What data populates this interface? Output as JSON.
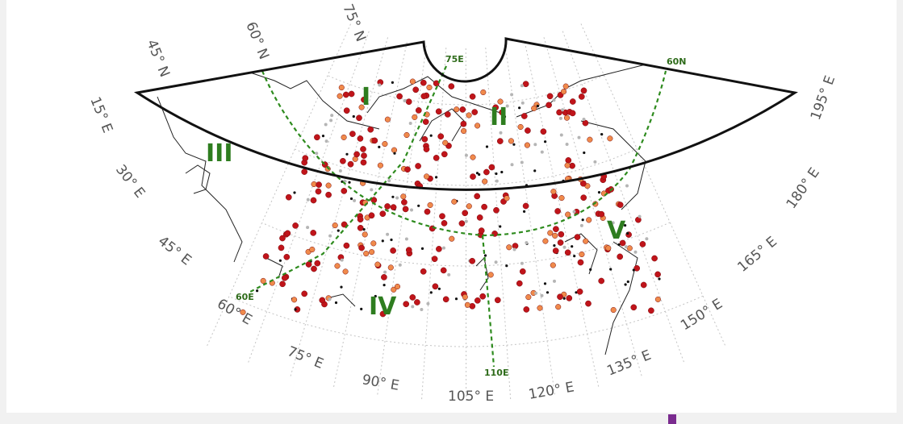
{
  "map": {
    "lon_labels": [
      "15° E",
      "30° E",
      "45° E",
      "60° E",
      "75° E",
      "90° E",
      "105° E",
      "120° E",
      "135° E",
      "150° E",
      "165° E",
      "180° E",
      "195° E"
    ],
    "lat_labels": [
      "45° N",
      "60° N",
      "75° N"
    ],
    "regions": [
      "I",
      "II",
      "III",
      "IV",
      "V"
    ],
    "boundary_labels": [
      "75E",
      "60N",
      "60E",
      "110E"
    ],
    "colors": {
      "frame": "#111111",
      "boundary": "#2e8b1e",
      "grid": "#bdbdbd",
      "station_red": "#c0141a",
      "station_orange": "#f08a4b",
      "station_black": "#111111",
      "station_gray": "#b5b5b5"
    }
  }
}
